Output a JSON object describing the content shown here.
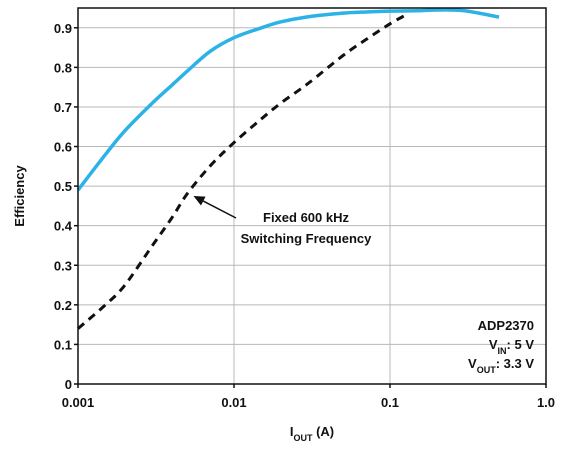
{
  "chart_data": {
    "type": "line",
    "xlabel": {
      "main": "I",
      "sub": "OUT",
      "rest": " (A)"
    },
    "ylabel": "Efficiency",
    "xscale": "log",
    "xlim": [
      0.001,
      1.0
    ],
    "ylim": [
      0,
      0.95
    ],
    "x_ticks": [
      0.001,
      0.01,
      0.1,
      1.0
    ],
    "x_tick_labels": [
      "0.001",
      "0.01",
      "0.1",
      "1.0"
    ],
    "y_ticks": [
      0,
      0.1,
      0.2,
      0.3,
      0.4,
      0.5,
      0.6,
      0.7,
      0.8,
      0.9
    ],
    "y_tick_labels": [
      "0",
      "0.1",
      "0.2",
      "0.3",
      "0.4",
      "0.5",
      "0.6",
      "0.7",
      "0.8",
      "0.9"
    ],
    "grid": true,
    "series": [
      {
        "color": "#2bb3e8",
        "style": "solid",
        "x": [
          0.001,
          0.0015,
          0.002,
          0.003,
          0.004,
          0.005,
          0.007,
          0.01,
          0.015,
          0.02,
          0.03,
          0.05,
          0.07,
          0.1,
          0.15,
          0.2,
          0.3,
          0.5
        ],
        "y": [
          0.49,
          0.58,
          0.64,
          0.71,
          0.755,
          0.79,
          0.84,
          0.875,
          0.9,
          0.915,
          0.928,
          0.937,
          0.94,
          0.942,
          0.943,
          0.945,
          0.943,
          0.927
        ]
      },
      {
        "color": "#111111",
        "style": "dashed",
        "x": [
          0.001,
          0.0015,
          0.002,
          0.003,
          0.004,
          0.005,
          0.007,
          0.01,
          0.015,
          0.02,
          0.03,
          0.05,
          0.07,
          0.1,
          0.13
        ],
        "y": [
          0.14,
          0.2,
          0.25,
          0.35,
          0.42,
          0.48,
          0.55,
          0.61,
          0.67,
          0.71,
          0.76,
          0.83,
          0.87,
          0.91,
          0.935
        ]
      }
    ],
    "annotations": [
      {
        "lines": [
          "Fixed 600 kHz",
          "Switching Frequency"
        ],
        "arrow_to": {
          "x": 0.0055,
          "y": 0.475
        }
      }
    ],
    "spec_box": {
      "part": "ADP2370",
      "vin": {
        "main": "V",
        "sub": "IN",
        "rest": ": 5 V"
      },
      "vout": {
        "main": "V",
        "sub": "OUT",
        "rest": ": 3.3 V"
      }
    }
  }
}
